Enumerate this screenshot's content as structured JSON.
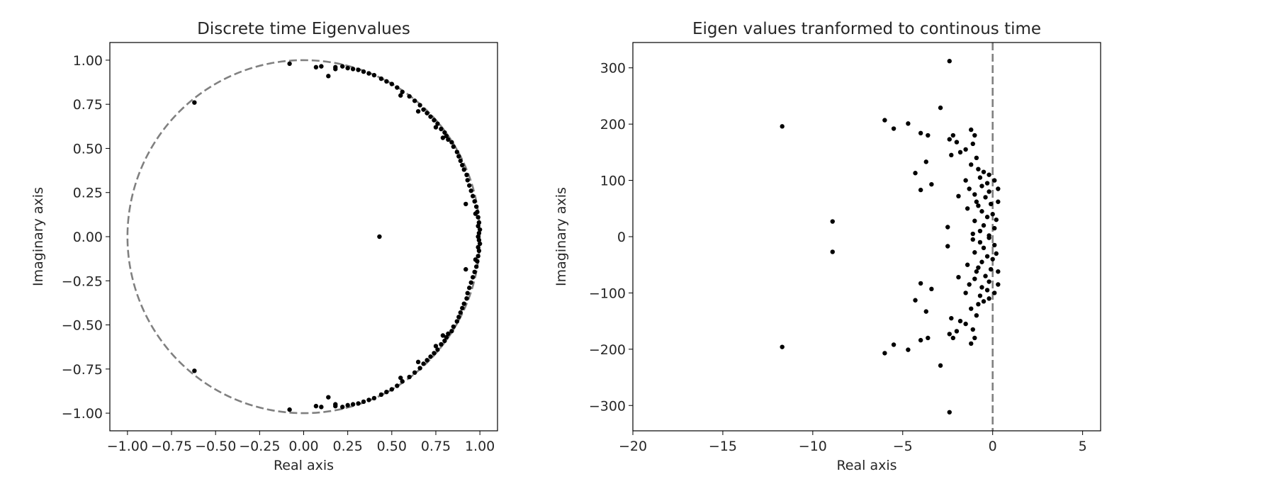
{
  "chart_data": [
    {
      "type": "scatter",
      "title": "Discrete time Eigenvalues",
      "xlabel": "Real axis",
      "ylabel": "Imaginary axis",
      "xlim": [
        -1.1,
        1.1
      ],
      "ylim": [
        -1.1,
        1.1
      ],
      "xticks": [
        -1.0,
        -0.75,
        -0.5,
        -0.25,
        0.0,
        0.25,
        0.5,
        0.75,
        1.0
      ],
      "xtick_labels": [
        "−1.00",
        "−0.75",
        "−0.50",
        "−0.25",
        "0.00",
        "0.25",
        "0.50",
        "0.75",
        "1.00"
      ],
      "yticks": [
        1.0,
        0.75,
        0.5,
        0.25,
        0.0,
        -0.25,
        -0.5,
        -0.75,
        -1.0
      ],
      "ytick_labels": [
        "1.00",
        "0.75",
        "0.50",
        "0.25",
        "0.00",
        "−0.25",
        "−0.50",
        "−0.75",
        "−1.00"
      ],
      "reference": {
        "shape": "unit circle",
        "style": "dashed",
        "color": "#808080",
        "radius": 1.0
      },
      "grid": false,
      "marker_color": "#000000",
      "points": [
        [
          0.43,
          0.0
        ],
        [
          -0.62,
          0.76
        ],
        [
          -0.62,
          -0.76
        ],
        [
          -0.08,
          0.98
        ],
        [
          -0.08,
          -0.98
        ],
        [
          0.07,
          0.96
        ],
        [
          0.1,
          0.965
        ],
        [
          0.14,
          0.91
        ],
        [
          0.18,
          0.95
        ],
        [
          0.18,
          0.96
        ],
        [
          0.22,
          0.965
        ],
        [
          0.25,
          0.955
        ],
        [
          0.28,
          0.95
        ],
        [
          0.31,
          0.945
        ],
        [
          0.34,
          0.935
        ],
        [
          0.37,
          0.925
        ],
        [
          0.4,
          0.915
        ],
        [
          0.44,
          0.895
        ],
        [
          0.47,
          0.88
        ],
        [
          0.5,
          0.865
        ],
        [
          0.53,
          0.845
        ],
        [
          0.56,
          0.82
        ],
        [
          0.55,
          0.8
        ],
        [
          0.6,
          0.795
        ],
        [
          0.63,
          0.77
        ],
        [
          0.66,
          0.745
        ],
        [
          0.65,
          0.71
        ],
        [
          0.68,
          0.72
        ],
        [
          0.7,
          0.7
        ],
        [
          0.72,
          0.68
        ],
        [
          0.74,
          0.66
        ],
        [
          0.76,
          0.64
        ],
        [
          0.75,
          0.62
        ],
        [
          0.78,
          0.61
        ],
        [
          0.8,
          0.59
        ],
        [
          0.79,
          0.56
        ],
        [
          0.81,
          0.57
        ],
        [
          0.82,
          0.55
        ],
        [
          0.84,
          0.535
        ],
        [
          0.85,
          0.51
        ],
        [
          0.87,
          0.48
        ],
        [
          0.88,
          0.455
        ],
        [
          0.89,
          0.43
        ],
        [
          0.9,
          0.405
        ],
        [
          0.91,
          0.38
        ],
        [
          0.925,
          0.35
        ],
        [
          0.93,
          0.32
        ],
        [
          0.94,
          0.29
        ],
        [
          0.95,
          0.26
        ],
        [
          0.96,
          0.23
        ],
        [
          0.92,
          0.185
        ],
        [
          0.97,
          0.2
        ],
        [
          0.98,
          0.17
        ],
        [
          0.985,
          0.14
        ],
        [
          0.975,
          0.13
        ],
        [
          0.99,
          0.11
        ],
        [
          0.995,
          0.08
        ],
        [
          0.99,
          0.06
        ],
        [
          1.0,
          0.04
        ],
        [
          0.995,
          0.02
        ],
        [
          0.99,
          0.0
        ],
        [
          0.995,
          -0.02
        ],
        [
          1.0,
          -0.04
        ],
        [
          0.99,
          -0.06
        ],
        [
          0.995,
          -0.08
        ],
        [
          0.99,
          -0.11
        ],
        [
          0.975,
          -0.13
        ],
        [
          0.985,
          -0.14
        ],
        [
          0.98,
          -0.17
        ],
        [
          0.92,
          -0.185
        ],
        [
          0.97,
          -0.2
        ],
        [
          0.96,
          -0.23
        ],
        [
          0.95,
          -0.26
        ],
        [
          0.94,
          -0.29
        ],
        [
          0.93,
          -0.32
        ],
        [
          0.925,
          -0.35
        ],
        [
          0.91,
          -0.38
        ],
        [
          0.9,
          -0.405
        ],
        [
          0.89,
          -0.43
        ],
        [
          0.88,
          -0.455
        ],
        [
          0.87,
          -0.48
        ],
        [
          0.85,
          -0.51
        ],
        [
          0.84,
          -0.535
        ],
        [
          0.82,
          -0.55
        ],
        [
          0.81,
          -0.57
        ],
        [
          0.79,
          -0.56
        ],
        [
          0.8,
          -0.59
        ],
        [
          0.78,
          -0.61
        ],
        [
          0.75,
          -0.62
        ],
        [
          0.76,
          -0.64
        ],
        [
          0.74,
          -0.66
        ],
        [
          0.72,
          -0.68
        ],
        [
          0.7,
          -0.7
        ],
        [
          0.68,
          -0.72
        ],
        [
          0.65,
          -0.71
        ],
        [
          0.66,
          -0.745
        ],
        [
          0.63,
          -0.77
        ],
        [
          0.6,
          -0.795
        ],
        [
          0.55,
          -0.8
        ],
        [
          0.56,
          -0.82
        ],
        [
          0.53,
          -0.845
        ],
        [
          0.5,
          -0.865
        ],
        [
          0.47,
          -0.88
        ],
        [
          0.44,
          -0.895
        ],
        [
          0.4,
          -0.915
        ],
        [
          0.37,
          -0.925
        ],
        [
          0.34,
          -0.935
        ],
        [
          0.31,
          -0.945
        ],
        [
          0.28,
          -0.95
        ],
        [
          0.25,
          -0.955
        ],
        [
          0.22,
          -0.965
        ],
        [
          0.18,
          -0.96
        ],
        [
          0.18,
          -0.95
        ],
        [
          0.14,
          -0.91
        ],
        [
          0.1,
          -0.965
        ],
        [
          0.07,
          -0.96
        ]
      ]
    },
    {
      "type": "scatter",
      "title": "Eigen values tranformed to continous time",
      "xlabel": "Real axis",
      "ylabel": "Imaginary axis",
      "xlim": [
        -20,
        6
      ],
      "ylim": [
        -345,
        345
      ],
      "xticks": [
        -20,
        -15,
        -10,
        -5,
        0,
        5
      ],
      "xtick_labels": [
        "−20",
        "−15",
        "−10",
        "−5",
        "0",
        "5"
      ],
      "yticks": [
        300,
        200,
        100,
        0,
        -100,
        -200,
        -300
      ],
      "ytick_labels": [
        "300",
        "200",
        "100",
        "0",
        "−100",
        "−200",
        "−300"
      ],
      "reference": {
        "shape": "vertical line x=0",
        "style": "dashed",
        "color": "#808080"
      },
      "grid": false,
      "marker_color": "#000000",
      "points": [
        [
          -2.4,
          312
        ],
        [
          -2.4,
          -312
        ],
        [
          -11.7,
          196
        ],
        [
          -11.7,
          -196
        ],
        [
          -8.9,
          27
        ],
        [
          -8.9,
          -27
        ],
        [
          -2.9,
          229
        ],
        [
          -2.9,
          -229
        ],
        [
          -6.0,
          207
        ],
        [
          -6.0,
          -207
        ],
        [
          -5.5,
          192
        ],
        [
          -5.5,
          -192
        ],
        [
          -4.7,
          201
        ],
        [
          -4.7,
          -201
        ],
        [
          -4.0,
          184
        ],
        [
          -4.0,
          -184
        ],
        [
          -3.6,
          180
        ],
        [
          -3.6,
          -180
        ],
        [
          -3.7,
          133
        ],
        [
          -3.7,
          -133
        ],
        [
          -4.3,
          113
        ],
        [
          -4.3,
          -113
        ],
        [
          -3.4,
          93
        ],
        [
          -3.4,
          -93
        ],
        [
          -4.0,
          83
        ],
        [
          -4.0,
          -83
        ],
        [
          -2.5,
          17
        ],
        [
          -2.5,
          -17
        ],
        [
          -2.4,
          173
        ],
        [
          -2.4,
          -173
        ],
        [
          -2.2,
          180
        ],
        [
          -2.2,
          -180
        ],
        [
          -2.0,
          168
        ],
        [
          -2.0,
          -168
        ],
        [
          -1.8,
          150
        ],
        [
          -1.8,
          -150
        ],
        [
          -2.3,
          145
        ],
        [
          -2.3,
          -145
        ],
        [
          -1.5,
          155
        ],
        [
          -1.5,
          -155
        ],
        [
          -1.2,
          190
        ],
        [
          -1.2,
          -190
        ],
        [
          -1.0,
          180
        ],
        [
          -1.0,
          -180
        ],
        [
          -1.1,
          165
        ],
        [
          -1.1,
          -165
        ],
        [
          -0.9,
          140
        ],
        [
          -0.9,
          -140
        ],
        [
          -1.2,
          128
        ],
        [
          -1.2,
          -128
        ],
        [
          -0.8,
          120
        ],
        [
          -0.8,
          -120
        ],
        [
          -0.5,
          115
        ],
        [
          -0.5,
          -115
        ],
        [
          -0.2,
          110
        ],
        [
          -0.2,
          -110
        ],
        [
          0.1,
          100
        ],
        [
          0.1,
          -100
        ],
        [
          -0.3,
          95
        ],
        [
          -0.3,
          -95
        ],
        [
          -0.6,
          90
        ],
        [
          -0.6,
          -90
        ],
        [
          -1.3,
          85
        ],
        [
          -1.3,
          -85
        ],
        [
          -1.9,
          72
        ],
        [
          -1.9,
          -72
        ],
        [
          -1.0,
          75
        ],
        [
          -1.0,
          -75
        ],
        [
          -0.4,
          70
        ],
        [
          -0.4,
          -70
        ],
        [
          0.3,
          62
        ],
        [
          0.3,
          -62
        ],
        [
          -0.1,
          58
        ],
        [
          -0.1,
          -58
        ],
        [
          -0.8,
          55
        ],
        [
          -0.8,
          -55
        ],
        [
          -1.4,
          50
        ],
        [
          -1.4,
          -50
        ],
        [
          -0.6,
          45
        ],
        [
          -0.6,
          -45
        ],
        [
          0.0,
          40
        ],
        [
          0.0,
          -40
        ],
        [
          -0.3,
          35
        ],
        [
          -0.3,
          -35
        ],
        [
          0.2,
          30
        ],
        [
          0.2,
          -30
        ],
        [
          -1.0,
          28
        ],
        [
          -1.0,
          -28
        ],
        [
          -0.5,
          20
        ],
        [
          -0.5,
          -20
        ],
        [
          0.1,
          15
        ],
        [
          0.1,
          -15
        ],
        [
          -0.7,
          10
        ],
        [
          -0.7,
          -10
        ],
        [
          -1.1,
          5
        ],
        [
          -1.1,
          -5
        ],
        [
          -0.2,
          2
        ],
        [
          -0.2,
          -2
        ],
        [
          -0.9,
          62
        ],
        [
          -0.9,
          -62
        ],
        [
          -0.2,
          80
        ],
        [
          -0.2,
          -80
        ],
        [
          0.3,
          85
        ],
        [
          0.3,
          -85
        ],
        [
          -1.5,
          100
        ],
        [
          -1.5,
          -100
        ],
        [
          -0.7,
          105
        ],
        [
          -0.7,
          -105
        ]
      ]
    }
  ]
}
